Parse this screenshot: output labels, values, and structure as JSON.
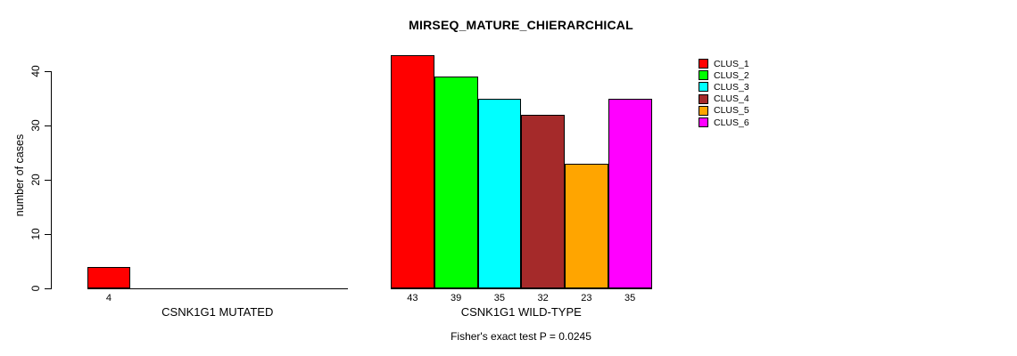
{
  "title": "MIRSEQ_MATURE_CHIERARCHICAL",
  "y_axis": {
    "label": "number of cases",
    "tick_labels": [
      "0",
      "10",
      "20",
      "30",
      "40"
    ]
  },
  "footer": "Fisher's exact test P = 0.0245",
  "colors": {
    "background": "#ffffff",
    "axis": "#000000",
    "bar_border": "#000000"
  },
  "legend": {
    "items": [
      {
        "label": "CLUS_1",
        "color": "#ff0000"
      },
      {
        "label": "CLUS_2",
        "color": "#00ff00"
      },
      {
        "label": "CLUS_3",
        "color": "#00ffff"
      },
      {
        "label": "CLUS_4",
        "color": "#a52a2a"
      },
      {
        "label": "CLUS_5",
        "color": "#ffa500"
      },
      {
        "label": "CLUS_6",
        "color": "#ff00ff"
      }
    ]
  },
  "chart_data": {
    "type": "bar",
    "title": "MIRSEQ_MATURE_CHIERARCHICAL",
    "ylabel": "number of cases",
    "ylim": [
      0,
      44
    ],
    "y_ticks": [
      0,
      10,
      20,
      30,
      40
    ],
    "grid": false,
    "legend_position": "top-right",
    "annotation": "Fisher's exact test P = 0.0245",
    "clusters": [
      "CLUS_1",
      "CLUS_2",
      "CLUS_3",
      "CLUS_4",
      "CLUS_5",
      "CLUS_6"
    ],
    "groups": [
      {
        "label": "CSNK1G1 MUTATED",
        "slots": 6,
        "bars": [
          {
            "cluster": "CLUS_1",
            "slot": 0,
            "value": 4,
            "value_label": "4",
            "color": "#ff0000"
          }
        ]
      },
      {
        "label": "CSNK1G1 WILD-TYPE",
        "slots": 6,
        "bars": [
          {
            "cluster": "CLUS_1",
            "slot": 0,
            "value": 43,
            "value_label": "43",
            "color": "#ff0000"
          },
          {
            "cluster": "CLUS_2",
            "slot": 1,
            "value": 39,
            "value_label": "39",
            "color": "#00ff00"
          },
          {
            "cluster": "CLUS_3",
            "slot": 2,
            "value": 35,
            "value_label": "35",
            "color": "#00ffff"
          },
          {
            "cluster": "CLUS_4",
            "slot": 3,
            "value": 32,
            "value_label": "32",
            "color": "#a52a2a"
          },
          {
            "cluster": "CLUS_5",
            "slot": 4,
            "value": 23,
            "value_label": "23",
            "color": "#ffa500"
          },
          {
            "cluster": "CLUS_6",
            "slot": 5,
            "value": 35,
            "value_label": "35",
            "color": "#ff00ff"
          }
        ]
      }
    ]
  }
}
